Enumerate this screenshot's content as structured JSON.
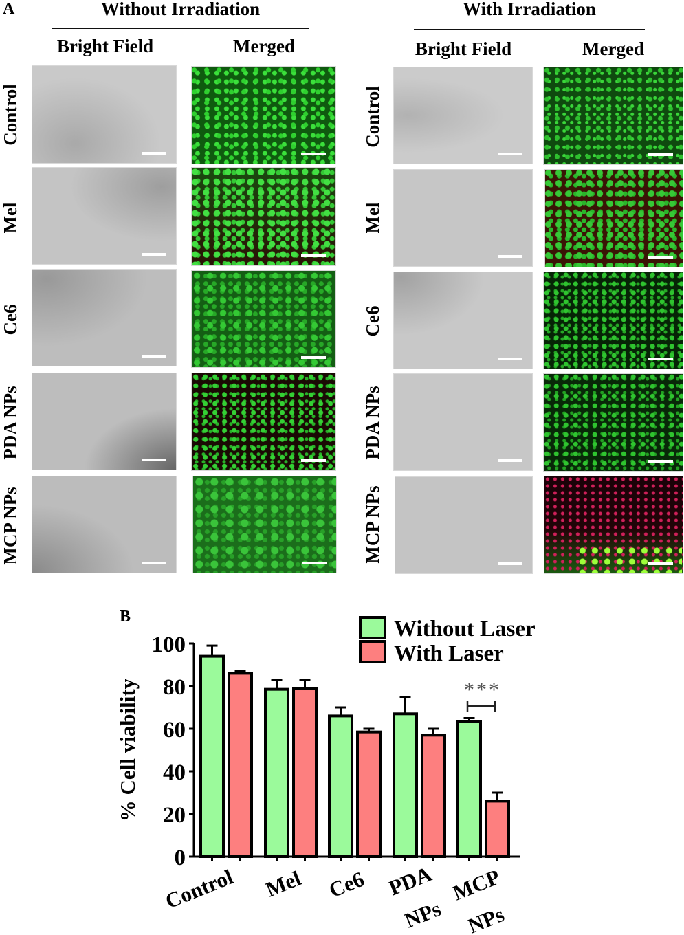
{
  "panel_a": {
    "letter": "A",
    "groups": [
      {
        "title": "Without Irradiation",
        "columns": [
          "Bright Field",
          "Merged"
        ]
      },
      {
        "title": "With Irradiation",
        "columns": [
          "Bright Field",
          "Merged"
        ]
      }
    ],
    "rows": [
      "Control",
      "Mel",
      "Ce6",
      "PDA NPs",
      "MCP NPs"
    ],
    "image_types": {
      "bright_field": "grayscale phase-contrast micrograph",
      "merged": "live/dead fluorescence (green = live, red = dead)"
    },
    "scale_bar_color": "#ffffff"
  },
  "panel_b": {
    "letter": "B"
  },
  "chart_data": {
    "type": "bar",
    "title": "",
    "xlabel": "",
    "ylabel": "% Cell viability",
    "ylim": [
      0,
      100
    ],
    "yticks": [
      0,
      20,
      40,
      60,
      80,
      100
    ],
    "categories": [
      "Control",
      "Mel",
      "Ce6",
      "PDA NPs",
      "MCP NPs"
    ],
    "category_label_lines": [
      [
        "Control"
      ],
      [
        "Mel"
      ],
      [
        "Ce6"
      ],
      [
        "PDA",
        "NPs"
      ],
      [
        "MCP",
        "NPs"
      ]
    ],
    "series": [
      {
        "name": "Without Laser",
        "color": "#9bfa9b",
        "values": [
          94,
          78.5,
          66,
          67,
          63.5
        ],
        "error": [
          5,
          4.5,
          4,
          8,
          1.5
        ]
      },
      {
        "name": "With Laser",
        "color": "#fd7f7f",
        "values": [
          86,
          79,
          58.5,
          57,
          26
        ],
        "error": [
          1,
          4,
          1.5,
          3,
          4
        ]
      }
    ],
    "legend": {
      "position": "top-right",
      "entries": [
        "Without Laser",
        "With Laser"
      ]
    },
    "annotations": [
      {
        "text": "***",
        "category": "MCP NPs",
        "type": "significance-bracket"
      }
    ],
    "grid": false
  }
}
